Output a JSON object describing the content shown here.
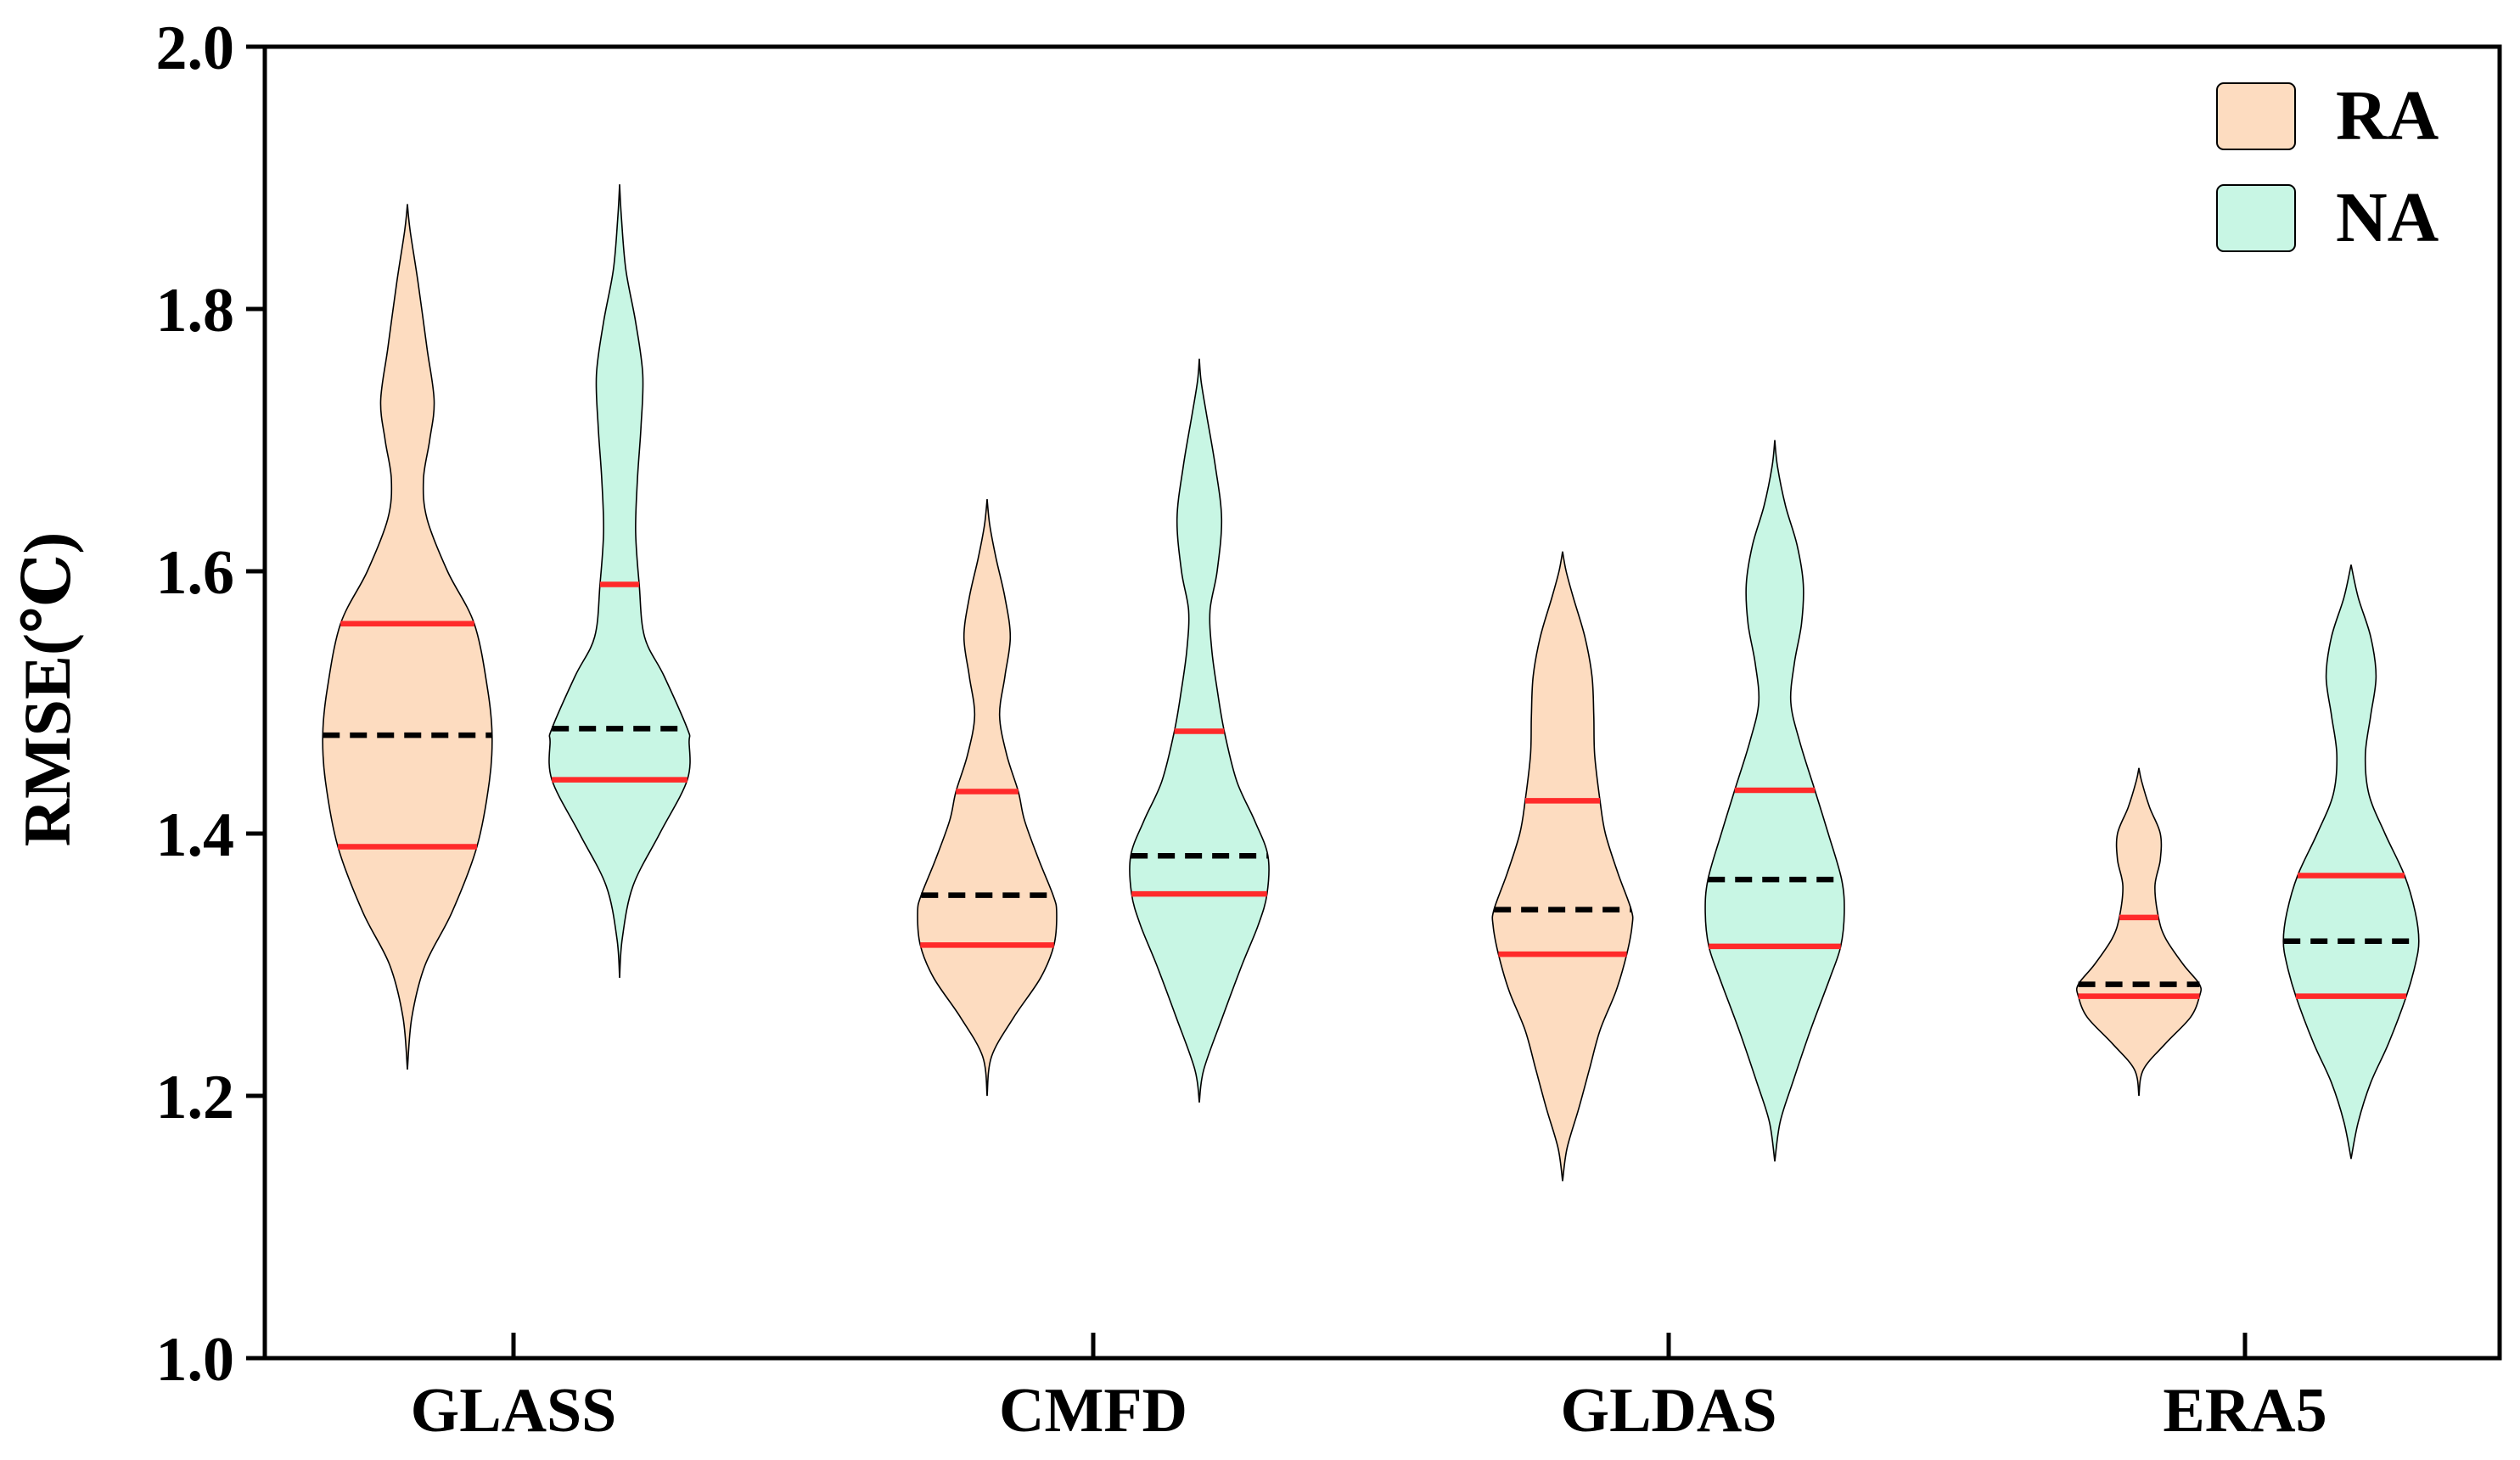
{
  "chart_data": {
    "type": "violin",
    "title": "",
    "xlabel": "",
    "ylabel": "RMSE(℃)",
    "ylim": [
      1.0,
      2.0
    ],
    "yticks": [
      "1.0",
      "1.2",
      "1.4",
      "1.6",
      "1.8",
      "2.0"
    ],
    "categories": [
      "GLASS",
      "CMFD",
      "GLDAS",
      "ERA5"
    ],
    "legend_position": "top-right",
    "colors": {
      "RA": "#fddcc0",
      "NA": "#c8f6e4",
      "outline": "#000000",
      "quartile_line": "#ff2a2a",
      "median_line": "#000000"
    },
    "series": [
      {
        "name": "RA",
        "violins": [
          {
            "category": "GLASS",
            "min": 1.22,
            "max": 1.88,
            "q1": 1.39,
            "median": 1.475,
            "q3": 1.56,
            "profile": [
              [
                1.22,
                0.0
              ],
              [
                1.26,
                0.05
              ],
              [
                1.3,
                0.2
              ],
              [
                1.34,
                0.5
              ],
              [
                1.39,
                0.78
              ],
              [
                1.44,
                0.92
              ],
              [
                1.475,
                0.95
              ],
              [
                1.51,
                0.9
              ],
              [
                1.56,
                0.75
              ],
              [
                1.6,
                0.45
              ],
              [
                1.64,
                0.22
              ],
              [
                1.67,
                0.18
              ],
              [
                1.7,
                0.25
              ],
              [
                1.73,
                0.3
              ],
              [
                1.77,
                0.22
              ],
              [
                1.82,
                0.12
              ],
              [
                1.86,
                0.03
              ],
              [
                1.88,
                0.0
              ]
            ]
          },
          {
            "category": "CMFD",
            "min": 1.2,
            "max": 1.655,
            "q1": 1.315,
            "median": 1.353,
            "q3": 1.432,
            "profile": [
              [
                1.2,
                0.0
              ],
              [
                1.23,
                0.05
              ],
              [
                1.26,
                0.3
              ],
              [
                1.29,
                0.6
              ],
              [
                1.315,
                0.75
              ],
              [
                1.34,
                0.78
              ],
              [
                1.353,
                0.74
              ],
              [
                1.38,
                0.58
              ],
              [
                1.41,
                0.42
              ],
              [
                1.432,
                0.35
              ],
              [
                1.46,
                0.22
              ],
              [
                1.49,
                0.14
              ],
              [
                1.52,
                0.2
              ],
              [
                1.55,
                0.26
              ],
              [
                1.58,
                0.2
              ],
              [
                1.61,
                0.1
              ],
              [
                1.635,
                0.03
              ],
              [
                1.655,
                0.0
              ]
            ]
          },
          {
            "category": "GLDAS",
            "min": 1.135,
            "max": 1.615,
            "q1": 1.308,
            "median": 1.342,
            "q3": 1.425,
            "profile": [
              [
                1.135,
                0.0
              ],
              [
                1.16,
                0.05
              ],
              [
                1.19,
                0.18
              ],
              [
                1.22,
                0.3
              ],
              [
                1.25,
                0.42
              ],
              [
                1.28,
                0.6
              ],
              [
                1.308,
                0.72
              ],
              [
                1.33,
                0.78
              ],
              [
                1.342,
                0.77
              ],
              [
                1.37,
                0.62
              ],
              [
                1.4,
                0.48
              ],
              [
                1.425,
                0.42
              ],
              [
                1.46,
                0.36
              ],
              [
                1.49,
                0.35
              ],
              [
                1.52,
                0.33
              ],
              [
                1.55,
                0.25
              ],
              [
                1.58,
                0.12
              ],
              [
                1.6,
                0.04
              ],
              [
                1.615,
                0.0
              ]
            ]
          },
          {
            "category": "ERA5",
            "min": 1.2,
            "max": 1.45,
            "q1": 1.276,
            "median": 1.285,
            "q3": 1.336,
            "profile": [
              [
                1.2,
                0.0
              ],
              [
                1.22,
                0.05
              ],
              [
                1.24,
                0.3
              ],
              [
                1.26,
                0.58
              ],
              [
                1.276,
                0.68
              ],
              [
                1.285,
                0.68
              ],
              [
                1.3,
                0.5
              ],
              [
                1.32,
                0.3
              ],
              [
                1.336,
                0.22
              ],
              [
                1.36,
                0.18
              ],
              [
                1.38,
                0.24
              ],
              [
                1.4,
                0.24
              ],
              [
                1.42,
                0.12
              ],
              [
                1.44,
                0.03
              ],
              [
                1.45,
                0.0
              ]
            ]
          }
        ]
      },
      {
        "name": "NA",
        "violins": [
          {
            "category": "GLASS",
            "min": 1.29,
            "max": 1.895,
            "q1": 1.441,
            "median": 1.48,
            "q3": 1.59,
            "profile": [
              [
                1.29,
                0.0
              ],
              [
                1.32,
                0.03
              ],
              [
                1.36,
                0.15
              ],
              [
                1.4,
                0.45
              ],
              [
                1.441,
                0.76
              ],
              [
                1.47,
                0.78
              ],
              [
                1.48,
                0.76
              ],
              [
                1.52,
                0.5
              ],
              [
                1.55,
                0.28
              ],
              [
                1.59,
                0.22
              ],
              [
                1.63,
                0.18
              ],
              [
                1.67,
                0.2
              ],
              [
                1.71,
                0.24
              ],
              [
                1.75,
                0.26
              ],
              [
                1.79,
                0.18
              ],
              [
                1.83,
                0.07
              ],
              [
                1.87,
                0.02
              ],
              [
                1.895,
                0.0
              ]
            ]
          },
          {
            "category": "CMFD",
            "min": 1.195,
            "max": 1.762,
            "q1": 1.354,
            "median": 1.383,
            "q3": 1.478,
            "profile": [
              [
                1.195,
                0.0
              ],
              [
                1.22,
                0.05
              ],
              [
                1.26,
                0.26
              ],
              [
                1.3,
                0.48
              ],
              [
                1.33,
                0.66
              ],
              [
                1.354,
                0.76
              ],
              [
                1.383,
                0.77
              ],
              [
                1.41,
                0.62
              ],
              [
                1.44,
                0.42
              ],
              [
                1.478,
                0.28
              ],
              [
                1.51,
                0.2
              ],
              [
                1.54,
                0.14
              ],
              [
                1.57,
                0.12
              ],
              [
                1.6,
                0.2
              ],
              [
                1.64,
                0.25
              ],
              [
                1.68,
                0.18
              ],
              [
                1.72,
                0.08
              ],
              [
                1.745,
                0.02
              ],
              [
                1.762,
                0.0
              ]
            ]
          },
          {
            "category": "GLDAS",
            "min": 1.15,
            "max": 1.7,
            "q1": 1.314,
            "median": 1.365,
            "q3": 1.433,
            "profile": [
              [
                1.15,
                0.0
              ],
              [
                1.18,
                0.06
              ],
              [
                1.21,
                0.2
              ],
              [
                1.25,
                0.4
              ],
              [
                1.29,
                0.62
              ],
              [
                1.314,
                0.74
              ],
              [
                1.34,
                0.78
              ],
              [
                1.365,
                0.75
              ],
              [
                1.4,
                0.6
              ],
              [
                1.433,
                0.45
              ],
              [
                1.47,
                0.28
              ],
              [
                1.5,
                0.18
              ],
              [
                1.53,
                0.22
              ],
              [
                1.56,
                0.3
              ],
              [
                1.59,
                0.32
              ],
              [
                1.62,
                0.25
              ],
              [
                1.65,
                0.12
              ],
              [
                1.68,
                0.03
              ],
              [
                1.7,
                0.0
              ]
            ]
          },
          {
            "category": "ERA5",
            "min": 1.152,
            "max": 1.605,
            "q1": 1.276,
            "median": 1.318,
            "q3": 1.368,
            "profile": [
              [
                1.152,
                0.0
              ],
              [
                1.18,
                0.08
              ],
              [
                1.21,
                0.22
              ],
              [
                1.24,
                0.42
              ],
              [
                1.276,
                0.62
              ],
              [
                1.3,
                0.72
              ],
              [
                1.318,
                0.76
              ],
              [
                1.34,
                0.72
              ],
              [
                1.368,
                0.6
              ],
              [
                1.4,
                0.38
              ],
              [
                1.43,
                0.2
              ],
              [
                1.46,
                0.16
              ],
              [
                1.49,
                0.22
              ],
              [
                1.52,
                0.28
              ],
              [
                1.55,
                0.22
              ],
              [
                1.58,
                0.08
              ],
              [
                1.605,
                0.0
              ]
            ]
          }
        ]
      }
    ]
  }
}
